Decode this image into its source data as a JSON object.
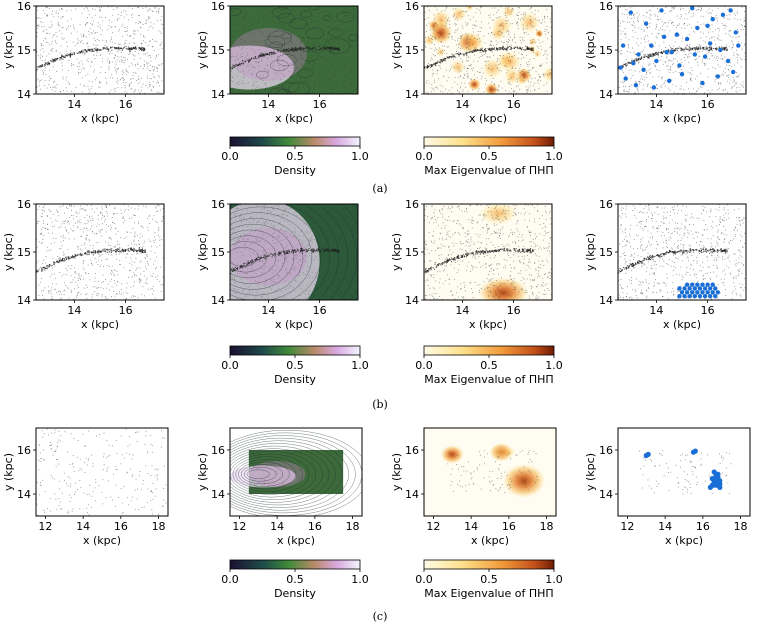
{
  "axis_labels": {
    "x": "x (kpc)",
    "y": "y (kpc)"
  },
  "colorbars": {
    "density": {
      "label": "Density",
      "ticks": [
        "0.0",
        "0.5",
        "1.0"
      ]
    },
    "eigen": {
      "label": "Max Eigenvalue of ΠHΠ",
      "ticks": [
        "0.0",
        "0.5",
        "1.0"
      ]
    }
  },
  "captions": [
    "(a)",
    "(b)",
    "(c)"
  ],
  "colors": {
    "points": "#333333",
    "detections": "#1a6fd6",
    "density_low": "#1b1030",
    "density_high": "#f2f6ff",
    "eigen_low": "#fff6c8",
    "eigen_high": "#7a2004"
  },
  "chart_data": [
    {
      "type": "scatter",
      "row": "a",
      "panel": "stars",
      "xlabel": "x (kpc)",
      "ylabel": "y (kpc)",
      "xlim": [
        12.5,
        17.5
      ],
      "ylim": [
        14,
        16
      ],
      "xticks": [
        14,
        16
      ],
      "yticks": [
        14,
        15,
        16
      ],
      "stream": {
        "x": [
          12.5,
          13.5,
          14.5,
          15.5,
          16.5,
          17.0
        ],
        "y": [
          14.6,
          14.85,
          15.0,
          15.05,
          15.05,
          15.0
        ]
      }
    },
    {
      "type": "heatmap",
      "row": "a",
      "panel": "density",
      "xlabel": "x (kpc)",
      "ylabel": "y (kpc)",
      "xlim": [
        12.5,
        17.5
      ],
      "ylim": [
        14,
        16
      ],
      "xticks": [
        14,
        16
      ],
      "yticks": [
        14,
        15,
        16
      ],
      "colorbar": "Density"
    },
    {
      "type": "heatmap",
      "row": "a",
      "panel": "eigenvalue",
      "xlabel": "x (kpc)",
      "ylabel": "y (kpc)",
      "xlim": [
        12.5,
        17.5
      ],
      "ylim": [
        14,
        16
      ],
      "xticks": [
        14,
        16
      ],
      "yticks": [
        14,
        15,
        16
      ],
      "colorbar": "Max Eigenvalue of ΠHΠ"
    },
    {
      "type": "scatter",
      "row": "a",
      "panel": "detections",
      "xlabel": "x (kpc)",
      "ylabel": "y (kpc)",
      "xlim": [
        12.5,
        17.5
      ],
      "ylim": [
        14,
        16
      ],
      "xticks": [
        14,
        16
      ],
      "yticks": [
        14,
        15,
        16
      ],
      "detections": {
        "x": [
          12.6,
          12.8,
          13.1,
          13.3,
          13.5,
          13.8,
          14.0,
          14.3,
          14.6,
          14.9,
          15.2,
          15.6,
          15.9,
          16.2,
          16.5,
          16.8,
          17.1,
          13.0,
          13.6,
          14.2,
          14.8,
          15.4,
          16.0,
          16.6,
          17.2,
          13.2,
          14.5,
          15.0,
          15.8,
          16.4,
          17.0,
          13.9,
          15.5,
          16.9,
          12.7,
          14.4,
          16.1
        ],
        "y": [
          14.6,
          14.35,
          14.7,
          14.9,
          14.55,
          15.1,
          14.75,
          15.3,
          14.95,
          14.65,
          15.25,
          15.5,
          14.85,
          15.7,
          15.0,
          14.75,
          15.4,
          15.85,
          15.6,
          15.9,
          15.35,
          15.95,
          15.55,
          15.8,
          15.1,
          14.2,
          14.3,
          14.45,
          14.25,
          14.4,
          14.5,
          14.15,
          14.9,
          15.9,
          15.1,
          14.95,
          15.15
        ]
      }
    },
    {
      "type": "scatter",
      "row": "b",
      "panel": "stars",
      "xlabel": "x (kpc)",
      "ylabel": "y (kpc)",
      "xlim": [
        12.5,
        17.5
      ],
      "ylim": [
        14,
        16
      ],
      "xticks": [
        14,
        16
      ],
      "yticks": [
        14,
        15,
        16
      ],
      "stream": {
        "x": [
          12.5,
          13.5,
          14.5,
          15.5,
          16.5,
          17.0
        ],
        "y": [
          14.6,
          14.85,
          15.0,
          15.05,
          15.05,
          15.0
        ]
      }
    },
    {
      "type": "heatmap",
      "row": "b",
      "panel": "density",
      "xlabel": "x (kpc)",
      "ylabel": "y (kpc)",
      "xlim": [
        12.5,
        17.5
      ],
      "ylim": [
        14,
        16
      ],
      "xticks": [
        14,
        16
      ],
      "yticks": [
        14,
        15,
        16
      ],
      "colorbar": "Density"
    },
    {
      "type": "heatmap",
      "row": "b",
      "panel": "eigenvalue",
      "xlabel": "x (kpc)",
      "ylabel": "y (kpc)",
      "xlim": [
        12.5,
        17.5
      ],
      "ylim": [
        14,
        16
      ],
      "xticks": [
        14,
        16
      ],
      "yticks": [
        14,
        15,
        16
      ],
      "colorbar": "Max Eigenvalue of ΠHΠ"
    },
    {
      "type": "scatter",
      "row": "b",
      "panel": "detections",
      "xlabel": "x (kpc)",
      "ylabel": "y (kpc)",
      "xlim": [
        12.5,
        17.5
      ],
      "ylim": [
        14,
        16
      ],
      "xticks": [
        14,
        16
      ],
      "yticks": [
        14,
        15,
        16
      ],
      "detections": {
        "x": [
          14.9,
          15.1,
          15.3,
          15.5,
          15.7,
          15.9,
          16.1,
          16.3,
          15.0,
          15.2,
          15.4,
          15.6,
          15.8,
          16.0,
          16.2,
          16.4,
          14.9,
          15.1,
          15.3,
          15.5,
          15.7,
          15.9,
          16.1,
          16.3,
          15.2,
          15.4,
          15.6,
          15.8,
          16.0,
          16.2
        ],
        "y": [
          14.08,
          14.08,
          14.08,
          14.08,
          14.08,
          14.08,
          14.08,
          14.08,
          14.16,
          14.16,
          14.16,
          14.16,
          14.16,
          14.16,
          14.16,
          14.16,
          14.24,
          14.24,
          14.24,
          14.24,
          14.24,
          14.24,
          14.24,
          14.24,
          14.32,
          14.32,
          14.32,
          14.32,
          14.32,
          14.32
        ]
      }
    },
    {
      "type": "scatter",
      "row": "c",
      "panel": "stars",
      "xlabel": "x (kpc)",
      "ylabel": "y (kpc)",
      "xlim": [
        11.5,
        18.5
      ],
      "ylim": [
        13,
        17
      ],
      "xticks": [
        12,
        14,
        16,
        18
      ],
      "yticks": [
        14,
        16
      ]
    },
    {
      "type": "heatmap",
      "row": "c",
      "panel": "density",
      "xlabel": "x (kpc)",
      "ylabel": "y (kpc)",
      "xlim": [
        11.5,
        18.5
      ],
      "ylim": [
        13,
        17
      ],
      "xticks": [
        12,
        14,
        16,
        18
      ],
      "yticks": [
        14,
        16
      ],
      "colorbar": "Density",
      "map_extent": {
        "x": [
          12.5,
          17.5
        ],
        "y": [
          14,
          16
        ]
      }
    },
    {
      "type": "heatmap",
      "row": "c",
      "panel": "eigenvalue",
      "xlabel": "x (kpc)",
      "ylabel": "y (kpc)",
      "xlim": [
        11.5,
        18.5
      ],
      "ylim": [
        13,
        17
      ],
      "xticks": [
        12,
        14,
        16,
        18
      ],
      "yticks": [
        14,
        16
      ],
      "colorbar": "Max Eigenvalue of ΠHΠ",
      "hotspots": {
        "x": [
          13.0,
          15.6,
          16.8
        ],
        "y": [
          15.8,
          15.9,
          14.6
        ]
      }
    },
    {
      "type": "scatter",
      "row": "c",
      "panel": "detections",
      "xlabel": "x (kpc)",
      "ylabel": "y (kpc)",
      "xlim": [
        11.5,
        18.5
      ],
      "ylim": [
        13,
        17
      ],
      "xticks": [
        12,
        14,
        16,
        18
      ],
      "yticks": [
        14,
        16
      ],
      "detections": {
        "x": [
          13.0,
          13.1,
          15.5,
          15.6,
          16.5,
          16.6,
          16.7,
          16.8,
          16.9,
          16.6,
          16.7,
          16.8,
          16.9,
          16.5,
          16.6,
          16.7,
          16.8,
          16.7,
          16.8,
          16.6,
          16.9,
          16.4
        ],
        "y": [
          15.75,
          15.8,
          15.9,
          15.95,
          14.4,
          14.4,
          14.4,
          14.4,
          14.45,
          14.55,
          14.55,
          14.55,
          14.6,
          14.7,
          14.7,
          14.7,
          14.75,
          14.85,
          14.9,
          15.0,
          14.3,
          14.3
        ]
      }
    }
  ]
}
